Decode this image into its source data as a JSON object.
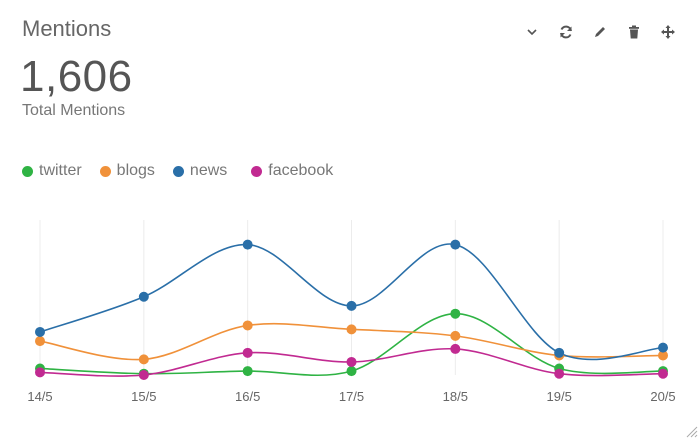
{
  "widget": {
    "title": "Mentions",
    "total": "1,606",
    "total_label": "Total Mentions"
  },
  "toolbar": {
    "icons": [
      "chevron-down-icon",
      "refresh-icon",
      "pencil-icon",
      "trash-icon",
      "move-icon"
    ]
  },
  "chart_data": {
    "type": "line",
    "categories": [
      "14/5",
      "15/5",
      "16/5",
      "17/5",
      "18/5",
      "19/5",
      "20/5"
    ],
    "ylim": [
      0,
      125
    ],
    "grid": "vertical",
    "legend": "top-left",
    "title": "",
    "xlabel": "",
    "ylabel": "",
    "series": [
      {
        "name": "twitter",
        "color": "#2fb344",
        "values": [
          5,
          1,
          3,
          3,
          47,
          5,
          3
        ]
      },
      {
        "name": "blogs",
        "color": "#f0913a",
        "values": [
          26,
          12,
          38,
          35,
          30,
          15,
          15
        ]
      },
      {
        "name": "news",
        "color": "#2a6fa8",
        "values": [
          33,
          60,
          100,
          53,
          100,
          17,
          21
        ]
      },
      {
        "name": "facebook",
        "color": "#c12a91",
        "values": [
          2,
          0,
          17,
          10,
          20,
          1,
          1
        ]
      }
    ]
  }
}
